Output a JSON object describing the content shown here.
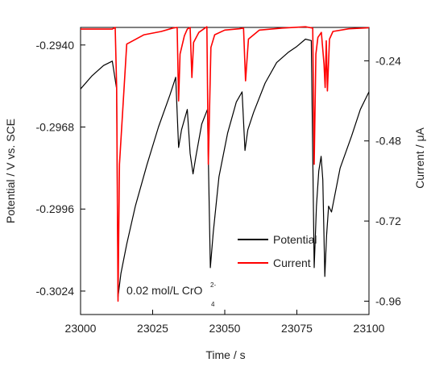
{
  "chart_data": {
    "type": "line",
    "xlabel": "Time / s",
    "ylabel_left": "Potential / V vs. SCE",
    "ylabel_right": "Current / μA",
    "x_range": [
      23000,
      23100
    ],
    "y_left_range": [
      -0.3032,
      -0.2934
    ],
    "y_right_range": [
      -1.0,
      -0.14
    ],
    "x_ticks": [
      "23000",
      "23025",
      "23050",
      "23075",
      "23100"
    ],
    "x_tick_values": [
      23000,
      23025,
      23050,
      23075,
      23100
    ],
    "y_left_ticks": [
      "-0.2940",
      "-0.2968",
      "-0.2996",
      "-0.3024"
    ],
    "y_left_tick_values": [
      -0.294,
      -0.2968,
      -0.2996,
      -0.3024
    ],
    "y_right_ticks": [
      "-0.24",
      "-0.48",
      "-0.72",
      "-0.96"
    ],
    "y_right_tick_values": [
      -0.24,
      -0.48,
      -0.72,
      -0.96
    ],
    "grid": false,
    "legend_position": "bottom-right",
    "annotation": {
      "text": "0.02 mol/L CrO",
      "superscript": "2-",
      "subscript": "4"
    },
    "series": [
      {
        "name": "Potential",
        "axis": "left",
        "color": "#000000",
        "x": [
          23000,
          23004,
          23008,
          23011,
          23012.5,
          23013,
          23014,
          23016,
          23019,
          23023,
          23027,
          23031,
          23033,
          23034,
          23035,
          23037,
          23038,
          23039,
          23040,
          23042,
          23044,
          23045,
          23046,
          23048,
          23051,
          23054,
          23056,
          23057,
          23058,
          23060,
          23064,
          23068,
          23072,
          23075,
          23078,
          23080,
          23081,
          23081.8,
          23082.6,
          23083.4,
          23084,
          23084.7,
          23085.3,
          23086,
          23087,
          23090,
          23094,
          23097,
          23100
        ],
        "y": [
          -0.2955,
          -0.29505,
          -0.2947,
          -0.29455,
          -0.2955,
          -0.3026,
          -0.3018,
          -0.3008,
          -0.2995,
          -0.2981,
          -0.2968,
          -0.2957,
          -0.2951,
          -0.2975,
          -0.2969,
          -0.2962,
          -0.2977,
          -0.2984,
          -0.2978,
          -0.2967,
          -0.2962,
          -0.3016,
          -0.3004,
          -0.2985,
          -0.297,
          -0.29595,
          -0.2956,
          -0.2976,
          -0.2969,
          -0.2963,
          -0.2953,
          -0.2946,
          -0.29425,
          -0.29405,
          -0.2938,
          -0.29385,
          -0.3016,
          -0.2995,
          -0.2983,
          -0.2978,
          -0.2986,
          -0.3019,
          -0.3005,
          -0.2995,
          -0.2997,
          -0.2982,
          -0.2971,
          -0.2962,
          -0.2956
        ]
      },
      {
        "name": "Current",
        "axis": "right",
        "color": "#ff0000",
        "x": [
          23000,
          23011,
          23012,
          23012.5,
          23013,
          23013.5,
          23016,
          23022,
          23028,
          23032,
          23033.5,
          23034,
          23034.5,
          23036,
          23037,
          23038,
          23038.6,
          23039.2,
          23041,
          23043,
          23043.8,
          23044.3,
          23045.2,
          23046.5,
          23050,
          23055,
          23056.5,
          23057.2,
          23058.2,
          23062,
          23070,
          23078,
          23080.5,
          23081,
          23081.6,
          23082.3,
          23083.5,
          23084.4,
          23084.8,
          23085.2,
          23085.6,
          23086.3,
          23087.5,
          23093,
          23100
        ],
        "y": [
          -0.145,
          -0.145,
          -0.14,
          -0.32,
          -0.96,
          -0.55,
          -0.19,
          -0.162,
          -0.152,
          -0.142,
          -0.14,
          -0.36,
          -0.22,
          -0.165,
          -0.145,
          -0.14,
          -0.29,
          -0.185,
          -0.155,
          -0.143,
          -0.138,
          -0.55,
          -0.2,
          -0.162,
          -0.148,
          -0.144,
          -0.142,
          -0.3,
          -0.175,
          -0.148,
          -0.142,
          -0.138,
          -0.142,
          -0.55,
          -0.22,
          -0.17,
          -0.155,
          -0.25,
          -0.32,
          -0.18,
          -0.33,
          -0.175,
          -0.152,
          -0.144,
          -0.141
        ]
      }
    ]
  }
}
